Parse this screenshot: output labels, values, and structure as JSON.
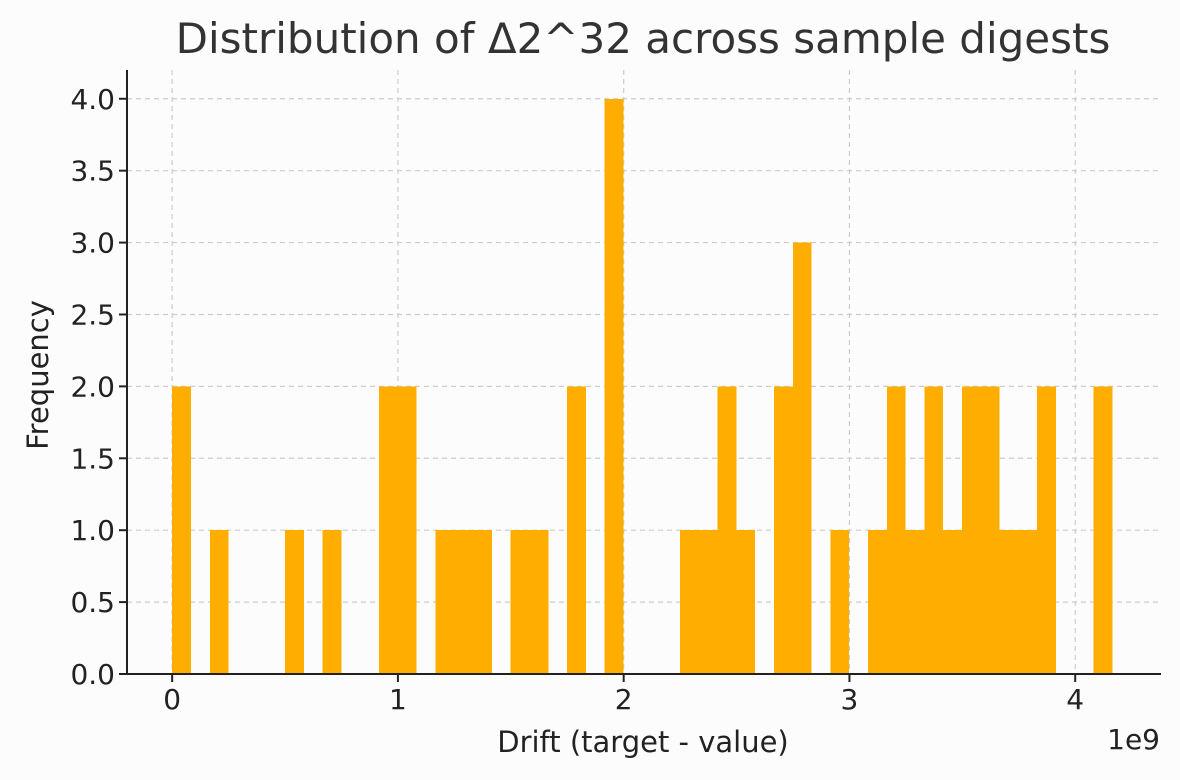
{
  "chart_data": {
    "type": "bar",
    "title": "Distribution of Δ2^32 across sample digests",
    "xlabel": "Drift (target - value)",
    "ylabel": "Frequency",
    "x_offset_label": "1e9",
    "bar_color": "#FFAE00",
    "xlim": [
      -0.2,
      4.38
    ],
    "ylim": [
      0,
      4.2
    ],
    "xticks": [
      0,
      1,
      2,
      3,
      4
    ],
    "xtick_labels": [
      "0",
      "1",
      "2",
      "3",
      "4"
    ],
    "yticks": [
      0,
      0.5,
      1,
      1.5,
      2,
      2.5,
      3,
      3.5,
      4
    ],
    "ytick_labels": [
      "0.0",
      "0.5",
      "1.0",
      "1.5",
      "2.0",
      "2.5",
      "3.0",
      "3.5",
      "4.0"
    ],
    "grid": true,
    "bin_width": 0.0833,
    "bins": [
      {
        "start": 0.0,
        "count": 2
      },
      {
        "start": 0.1666,
        "count": 1
      },
      {
        "start": 0.4998,
        "count": 1
      },
      {
        "start": 0.6664,
        "count": 1
      },
      {
        "start": 0.9163,
        "count": 2
      },
      {
        "start": 0.9996,
        "count": 2
      },
      {
        "start": 1.1662,
        "count": 1
      },
      {
        "start": 1.2495,
        "count": 1
      },
      {
        "start": 1.3328,
        "count": 1
      },
      {
        "start": 1.4994,
        "count": 1
      },
      {
        "start": 1.5827,
        "count": 1
      },
      {
        "start": 1.7493,
        "count": 2
      },
      {
        "start": 1.9159,
        "count": 4
      },
      {
        "start": 2.2491,
        "count": 1
      },
      {
        "start": 2.3324,
        "count": 1
      },
      {
        "start": 2.4157,
        "count": 2
      },
      {
        "start": 2.499,
        "count": 1
      },
      {
        "start": 2.6656,
        "count": 2
      },
      {
        "start": 2.7489,
        "count": 3
      },
      {
        "start": 2.9155,
        "count": 1
      },
      {
        "start": 3.0821,
        "count": 1
      },
      {
        "start": 3.1654,
        "count": 2
      },
      {
        "start": 3.2487,
        "count": 1
      },
      {
        "start": 3.332,
        "count": 2
      },
      {
        "start": 3.4153,
        "count": 1
      },
      {
        "start": 3.4986,
        "count": 2
      },
      {
        "start": 3.5819,
        "count": 2
      },
      {
        "start": 3.6652,
        "count": 1
      },
      {
        "start": 3.7485,
        "count": 1
      },
      {
        "start": 3.8318,
        "count": 2
      },
      {
        "start": 4.0817,
        "count": 2
      }
    ]
  }
}
